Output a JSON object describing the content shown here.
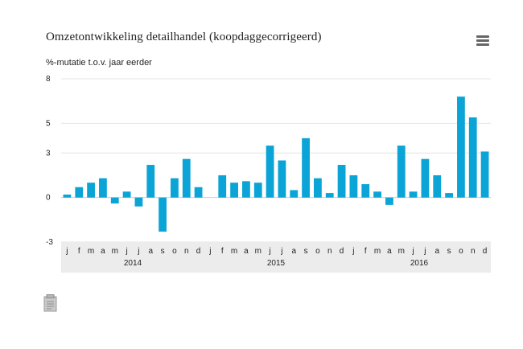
{
  "chart_title": "Omzetontwikkeling detailhandel (koopdaggecorrigeerd)",
  "menu_icon": "hamburger-menu-icon",
  "export_icon": "document-export-icon",
  "colors": {
    "bar": "#0ba4d6",
    "grid": "#e4e4e4",
    "zero_line": "#cfcfcf",
    "axis_band": "#ececec",
    "text": "#222222"
  },
  "chart_data": {
    "type": "bar",
    "title": "Omzetontwikkeling detailhandel (koopdaggecorrigeerd)",
    "ylabel": "%-mutatie t.o.v. jaar eerder",
    "xlabel": "",
    "ylim": [
      -3,
      8
    ],
    "yticks": [
      "8",
      "5",
      "3",
      "0",
      "-3"
    ],
    "ytick_values": [
      8,
      5,
      3,
      0,
      -3
    ],
    "grid": true,
    "legend": "none",
    "years": [
      "2014",
      "2015",
      "2016"
    ],
    "categories": [
      "j",
      "f",
      "m",
      "a",
      "m",
      "j",
      "j",
      "a",
      "s",
      "o",
      "n",
      "d",
      "j",
      "f",
      "m",
      "a",
      "m",
      "j",
      "j",
      "a",
      "s",
      "o",
      "n",
      "d",
      "j",
      "f",
      "m",
      "a",
      "m",
      "j",
      "j",
      "a",
      "s",
      "o",
      "n",
      "d"
    ],
    "values": [
      0.2,
      0.7,
      1.0,
      1.3,
      -0.4,
      0.4,
      -0.6,
      2.2,
      -2.3,
      1.3,
      2.6,
      0.7,
      0.0,
      1.5,
      1.0,
      1.1,
      1.0,
      3.5,
      2.5,
      0.5,
      4.0,
      1.3,
      0.3,
      2.2,
      1.5,
      0.9,
      0.4,
      -0.5,
      3.5,
      0.4,
      2.6,
      1.5,
      0.3,
      6.8,
      5.4,
      3.1
    ]
  }
}
